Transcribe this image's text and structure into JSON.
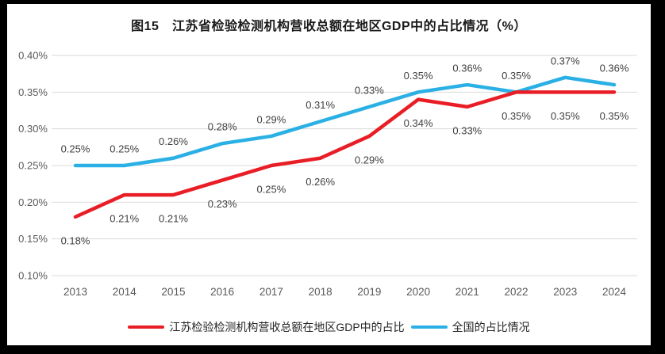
{
  "frame": {
    "border_color": "#000000",
    "background": "#ffffff"
  },
  "title": "图15　江苏省检验检测机构营收总额在地区GDP中的占比情况（%）",
  "chart_data": {
    "type": "line",
    "categories": [
      "2013",
      "2014",
      "2015",
      "2016",
      "2017",
      "2018",
      "2019",
      "2020",
      "2021",
      "2022",
      "2023",
      "2024"
    ],
    "series": [
      {
        "name": "江苏检验检测机构营收总额在地区GDP中的占比",
        "color": "#E91D25",
        "values": [
          0.18,
          0.21,
          0.21,
          0.23,
          0.25,
          0.26,
          0.29,
          0.34,
          0.33,
          0.35,
          0.35,
          0.35
        ],
        "labels": [
          "0.18%",
          "0.21%",
          "0.21%",
          "0.23%",
          "0.25%",
          "0.26%",
          "0.29%",
          "0.34%",
          "0.33%",
          "0.35%",
          "0.35%",
          "0.35%"
        ],
        "label_position": "below"
      },
      {
        "name": "全国的占比情况",
        "color": "#2BB0E5",
        "values": [
          0.25,
          0.25,
          0.26,
          0.28,
          0.29,
          0.31,
          0.33,
          0.35,
          0.36,
          0.35,
          0.37,
          0.36
        ],
        "labels": [
          "0.25%",
          "0.25%",
          "0.26%",
          "0.28%",
          "0.29%",
          "0.31%",
          "0.33%",
          "0.35%",
          "0.36%",
          "0.35%",
          "0.37%",
          "0.36%"
        ],
        "label_position": "above"
      }
    ],
    "xlabel": "",
    "ylabel": "",
    "ylim": [
      0.1,
      0.4
    ],
    "ytick_step": 0.05,
    "ytick_labels": [
      "0.10%",
      "0.15%",
      "0.20%",
      "0.25%",
      "0.30%",
      "0.35%",
      "0.40%"
    ],
    "grid": true,
    "gridline_color": "#D9D9D9",
    "axis_label_color": "#595959",
    "data_label_color": "#3F3F3F",
    "legend_position": "bottom"
  }
}
